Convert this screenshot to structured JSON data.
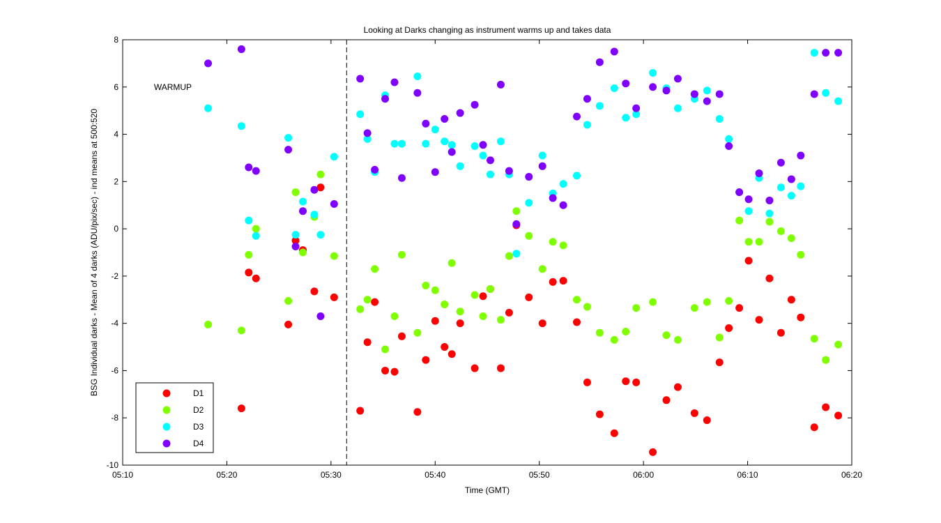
{
  "chart_data": {
    "type": "scatter",
    "title": "Looking at Darks changing as instrument warms up and takes data",
    "xlabel": "Time (GMT)",
    "ylabel": "BSG Individual darks - Mean of 4 darks (ADU/pix/sec) - ind means at 500:520",
    "xlim": [
      "05:10",
      "06:20"
    ],
    "ylim": [
      -10,
      8
    ],
    "x_ticks": [
      "05:10",
      "05:20",
      "05:30",
      "05:40",
      "05:50",
      "06:00",
      "06:10",
      "06:20"
    ],
    "y_ticks": [
      -10,
      -8,
      -6,
      -4,
      -2,
      0,
      2,
      4,
      6,
      8
    ],
    "grid": false,
    "legend_position": "bottom-left",
    "annotations": [
      {
        "text": "WARMUP",
        "x": "05:13",
        "y": 6.0
      },
      {
        "type": "vertical-dashed-line",
        "x": "05:31.5"
      }
    ],
    "series": [
      {
        "name": "D1",
        "color": "#ff0000",
        "points": [
          [
            "05:21.4",
            -7.6
          ],
          [
            "05:22.1",
            -1.85
          ],
          [
            "05:22.8",
            -2.1
          ],
          [
            "05:25.9",
            -4.05
          ],
          [
            "05:26.6",
            -0.5
          ],
          [
            "05:27.3",
            -0.9
          ],
          [
            "05:28.4",
            -2.65
          ],
          [
            "05:29.0",
            1.75
          ],
          [
            "05:30.3",
            -2.9
          ],
          [
            "05:32.8",
            -7.7
          ],
          [
            "05:33.5",
            -4.8
          ],
          [
            "05:34.2",
            -3.1
          ],
          [
            "05:35.2",
            -6.0
          ],
          [
            "05:36.1",
            -6.05
          ],
          [
            "05:36.8",
            -4.55
          ],
          [
            "05:38.3",
            -7.75
          ],
          [
            "05:39.1",
            -5.55
          ],
          [
            "05:40.0",
            -3.9
          ],
          [
            "05:40.9",
            -5.0
          ],
          [
            "05:41.6",
            -5.3
          ],
          [
            "05:42.4",
            -4.0
          ],
          [
            "05:43.8",
            -5.9
          ],
          [
            "05:44.6",
            -2.85
          ],
          [
            "05:45.3",
            -2.55
          ],
          [
            "05:46.3",
            -5.9
          ],
          [
            "05:47.1",
            -3.55
          ],
          [
            "05:47.8",
            0.15
          ],
          [
            "05:49.0",
            -2.9
          ],
          [
            "05:50.3",
            -4.0
          ],
          [
            "05:51.3",
            -2.25
          ],
          [
            "05:52.3",
            -2.2
          ],
          [
            "05:53.6",
            -3.95
          ],
          [
            "05:54.6",
            -6.5
          ],
          [
            "05:55.8",
            -7.85
          ],
          [
            "05:57.2",
            -8.65
          ],
          [
            "05:58.3",
            -6.45
          ],
          [
            "05:59.3",
            -6.5
          ],
          [
            "06:00.9",
            -9.45
          ],
          [
            "06:02.2",
            -7.25
          ],
          [
            "06:03.3",
            -6.7
          ],
          [
            "06:04.9",
            -7.8
          ],
          [
            "06:06.1",
            -8.1
          ],
          [
            "06:07.3",
            -5.65
          ],
          [
            "06:08.2",
            -4.2
          ],
          [
            "06:09.2",
            -3.35
          ],
          [
            "06:10.1",
            -1.35
          ],
          [
            "06:11.1",
            -3.85
          ],
          [
            "06:12.1",
            -2.1
          ],
          [
            "06:13.2",
            -4.4
          ],
          [
            "06:14.2",
            -3.0
          ],
          [
            "06:15.1",
            -3.75
          ],
          [
            "06:16.4",
            -8.4
          ],
          [
            "06:17.5",
            -7.55
          ],
          [
            "06:18.7",
            -7.9
          ]
        ]
      },
      {
        "name": "D2",
        "color": "#80ff00",
        "points": [
          [
            "05:18.2",
            -4.05
          ],
          [
            "05:21.4",
            -4.3
          ],
          [
            "05:22.1",
            -1.1
          ],
          [
            "05:22.8",
            0.0
          ],
          [
            "05:25.9",
            -3.05
          ],
          [
            "05:26.6",
            1.55
          ],
          [
            "05:27.3",
            -1.0
          ],
          [
            "05:28.4",
            0.5
          ],
          [
            "05:29.0",
            2.3
          ],
          [
            "05:30.3",
            -1.15
          ],
          [
            "05:32.8",
            -3.4
          ],
          [
            "05:33.5",
            -3.0
          ],
          [
            "05:34.2",
            -1.7
          ],
          [
            "05:35.2",
            -5.1
          ],
          [
            "05:36.1",
            -3.7
          ],
          [
            "05:36.8",
            -1.1
          ],
          [
            "05:38.3",
            -4.4
          ],
          [
            "05:39.1",
            -2.4
          ],
          [
            "05:40.0",
            -2.6
          ],
          [
            "05:40.9",
            -3.2
          ],
          [
            "05:41.6",
            -1.45
          ],
          [
            "05:42.4",
            -3.5
          ],
          [
            "05:43.8",
            -2.8
          ],
          [
            "05:44.6",
            -3.7
          ],
          [
            "05:45.3",
            -2.55
          ],
          [
            "05:46.3",
            -3.85
          ],
          [
            "05:47.1",
            -1.15
          ],
          [
            "05:47.8",
            0.75
          ],
          [
            "05:49.0",
            -0.3
          ],
          [
            "05:50.3",
            -1.7
          ],
          [
            "05:51.3",
            -0.55
          ],
          [
            "05:52.3",
            -0.7
          ],
          [
            "05:53.6",
            -3.0
          ],
          [
            "05:54.6",
            -3.3
          ],
          [
            "05:55.8",
            -4.4
          ],
          [
            "05:57.2",
            -4.7
          ],
          [
            "05:58.3",
            -4.35
          ],
          [
            "05:59.3",
            -3.35
          ],
          [
            "06:00.9",
            -3.1
          ],
          [
            "06:02.2",
            -4.5
          ],
          [
            "06:03.3",
            -4.7
          ],
          [
            "06:04.9",
            -3.35
          ],
          [
            "06:06.1",
            -3.1
          ],
          [
            "06:07.3",
            -4.6
          ],
          [
            "06:08.2",
            -3.05
          ],
          [
            "06:09.2",
            0.35
          ],
          [
            "06:10.1",
            -0.55
          ],
          [
            "06:11.1",
            -0.55
          ],
          [
            "06:12.1",
            0.3
          ],
          [
            "06:13.2",
            -0.1
          ],
          [
            "06:14.2",
            -0.4
          ],
          [
            "06:15.1",
            -1.1
          ],
          [
            "06:16.4",
            -4.65
          ],
          [
            "06:17.5",
            -5.55
          ],
          [
            "06:18.7",
            -4.9
          ]
        ]
      },
      {
        "name": "D3",
        "color": "#00ffff",
        "points": [
          [
            "05:18.2",
            5.1
          ],
          [
            "05:21.4",
            4.35
          ],
          [
            "05:22.1",
            0.35
          ],
          [
            "05:22.8",
            -0.3
          ],
          [
            "05:25.9",
            3.85
          ],
          [
            "05:26.6",
            -0.25
          ],
          [
            "05:27.3",
            1.15
          ],
          [
            "05:28.4",
            0.6
          ],
          [
            "05:29.0",
            -0.25
          ],
          [
            "05:30.3",
            3.05
          ],
          [
            "05:32.8",
            4.85
          ],
          [
            "05:33.5",
            3.8
          ],
          [
            "05:34.2",
            2.4
          ],
          [
            "05:35.2",
            5.65
          ],
          [
            "05:36.1",
            3.6
          ],
          [
            "05:36.8",
            3.6
          ],
          [
            "05:38.3",
            6.45
          ],
          [
            "05:39.1",
            3.6
          ],
          [
            "05:40.0",
            4.2
          ],
          [
            "05:40.9",
            3.7
          ],
          [
            "05:41.6",
            3.55
          ],
          [
            "05:42.4",
            2.65
          ],
          [
            "05:43.8",
            3.5
          ],
          [
            "05:44.6",
            3.1
          ],
          [
            "05:45.3",
            2.3
          ],
          [
            "05:46.3",
            3.7
          ],
          [
            "05:47.1",
            2.3
          ],
          [
            "05:47.8",
            -1.05
          ],
          [
            "05:49.0",
            1.1
          ],
          [
            "05:50.3",
            3.1
          ],
          [
            "05:51.3",
            1.5
          ],
          [
            "05:52.3",
            1.9
          ],
          [
            "05:53.6",
            2.25
          ],
          [
            "05:54.6",
            4.4
          ],
          [
            "05:55.8",
            5.2
          ],
          [
            "05:57.2",
            5.95
          ],
          [
            "05:58.3",
            4.7
          ],
          [
            "05:59.3",
            4.85
          ],
          [
            "06:00.9",
            6.6
          ],
          [
            "06:02.2",
            5.95
          ],
          [
            "06:03.3",
            5.1
          ],
          [
            "06:04.9",
            5.5
          ],
          [
            "06:06.1",
            5.85
          ],
          [
            "06:07.3",
            4.65
          ],
          [
            "06:08.2",
            3.8
          ],
          [
            "06:09.2",
            1.55
          ],
          [
            "06:10.1",
            0.75
          ],
          [
            "06:11.1",
            2.15
          ],
          [
            "06:12.1",
            0.65
          ],
          [
            "06:13.2",
            1.75
          ],
          [
            "06:14.2",
            1.4
          ],
          [
            "06:15.1",
            1.8
          ],
          [
            "06:16.4",
            7.45
          ],
          [
            "06:17.5",
            5.75
          ],
          [
            "06:18.7",
            5.4
          ]
        ]
      },
      {
        "name": "D4",
        "color": "#8000ff",
        "points": [
          [
            "05:18.2",
            7.0
          ],
          [
            "05:21.4",
            7.6
          ],
          [
            "05:22.1",
            2.6
          ],
          [
            "05:22.8",
            2.45
          ],
          [
            "05:25.9",
            3.35
          ],
          [
            "05:26.6",
            -0.75
          ],
          [
            "05:27.3",
            0.75
          ],
          [
            "05:28.4",
            1.65
          ],
          [
            "05:29.0",
            -3.7
          ],
          [
            "05:30.3",
            1.05
          ],
          [
            "05:32.8",
            6.35
          ],
          [
            "05:33.5",
            4.05
          ],
          [
            "05:34.2",
            2.5
          ],
          [
            "05:35.2",
            5.5
          ],
          [
            "05:36.1",
            6.2
          ],
          [
            "05:36.8",
            2.15
          ],
          [
            "05:38.3",
            5.75
          ],
          [
            "05:39.1",
            4.45
          ],
          [
            "05:40.0",
            2.4
          ],
          [
            "05:40.9",
            4.65
          ],
          [
            "05:41.6",
            3.25
          ],
          [
            "05:42.4",
            4.9
          ],
          [
            "05:43.8",
            5.25
          ],
          [
            "05:44.6",
            3.55
          ],
          [
            "05:45.3",
            2.9
          ],
          [
            "05:46.3",
            6.1
          ],
          [
            "05:47.1",
            2.45
          ],
          [
            "05:47.8",
            0.2
          ],
          [
            "05:49.0",
            2.2
          ],
          [
            "05:50.3",
            2.65
          ],
          [
            "05:51.3",
            1.3
          ],
          [
            "05:52.3",
            1.0
          ],
          [
            "05:53.6",
            4.75
          ],
          [
            "05:54.6",
            5.5
          ],
          [
            "05:55.8",
            7.05
          ],
          [
            "05:57.2",
            7.5
          ],
          [
            "05:58.3",
            6.15
          ],
          [
            "05:59.3",
            5.1
          ],
          [
            "06:00.9",
            6.0
          ],
          [
            "06:02.2",
            5.85
          ],
          [
            "06:03.3",
            6.35
          ],
          [
            "06:04.9",
            5.7
          ],
          [
            "06:06.1",
            5.4
          ],
          [
            "06:07.3",
            5.7
          ],
          [
            "06:08.2",
            3.5
          ],
          [
            "06:09.2",
            1.55
          ],
          [
            "06:10.1",
            1.25
          ],
          [
            "06:11.1",
            2.35
          ],
          [
            "06:12.1",
            1.2
          ],
          [
            "06:13.2",
            2.8
          ],
          [
            "06:14.2",
            2.1
          ],
          [
            "06:15.1",
            3.1
          ],
          [
            "06:16.4",
            5.7
          ],
          [
            "06:17.5",
            7.45
          ],
          [
            "06:18.7",
            7.45
          ]
        ]
      }
    ]
  }
}
